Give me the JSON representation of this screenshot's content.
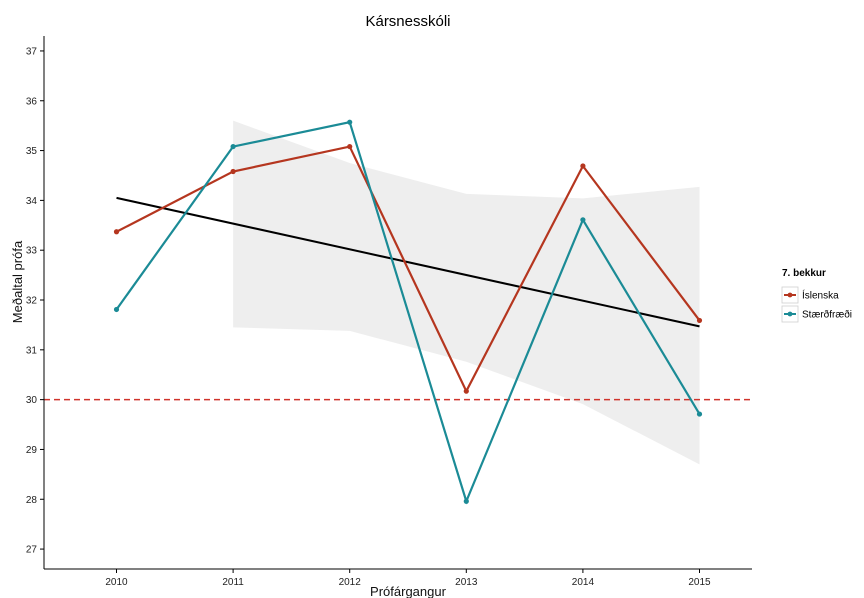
{
  "chart_data": {
    "type": "line",
    "title": "Kársnesskóli",
    "xlabel": "Prófárgangur",
    "ylabel": "Meðaltal prófa",
    "x": [
      2010,
      2011,
      2012,
      2013,
      2014,
      2015
    ],
    "xlim": [
      2009.5,
      2015.6
    ],
    "ylim": [
      26.6,
      37.3
    ],
    "yticks": [
      27,
      28,
      29,
      30,
      31,
      32,
      33,
      34,
      35,
      36,
      37
    ],
    "series": [
      {
        "name": "Íslenska",
        "color": "#b5361f",
        "values": [
          33.37,
          34.58,
          35.08,
          30.17,
          34.69,
          31.59
        ]
      },
      {
        "name": "Stærðfræði",
        "color": "#1b8b96",
        "values": [
          31.81,
          35.08,
          35.57,
          27.96,
          33.61,
          29.71
        ]
      }
    ],
    "trend_line": {
      "color": "#000000",
      "x": [
        2010,
        2015
      ],
      "y": [
        34.05,
        31.47
      ]
    },
    "confidence_band": {
      "color": "#eeeeee",
      "x": [
        2011,
        2012,
        2013,
        2014,
        2015
      ],
      "upper": [
        35.6,
        34.75,
        34.13,
        34.04,
        34.27
      ],
      "lower": [
        31.45,
        31.38,
        30.76,
        29.91,
        28.7
      ]
    },
    "reference_line": {
      "y": 30,
      "color": "#d0342c",
      "style": "dashed"
    },
    "legend": {
      "title": "7. bekkur",
      "position": "right"
    },
    "grid": false
  }
}
